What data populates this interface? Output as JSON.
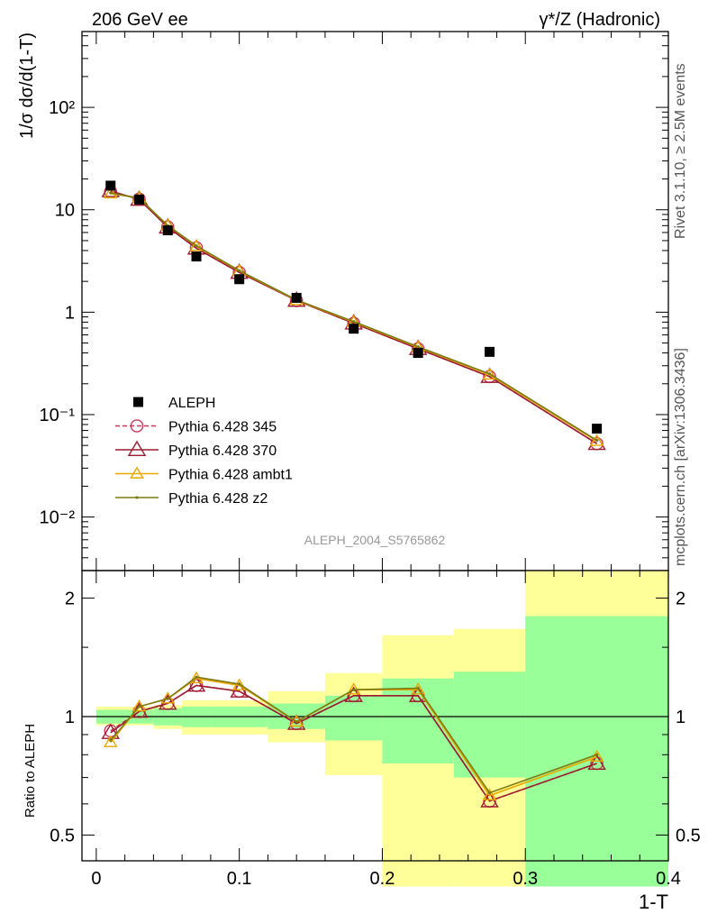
{
  "header": {
    "left_label": "206 GeV ee",
    "right_label": "γ*/Z (Hadronic)"
  },
  "side_labels": {
    "top": "Rivet 3.1.10, ≥ 2.5M events",
    "bottom": "mcplots.cern.ch [arXiv:1306.3436]"
  },
  "watermark": "ALEPH_2004_S5765862",
  "colors": {
    "data": "#000000",
    "p345": "#c83c5a",
    "p370": "#9b1b30",
    "ambt1": "#e8a800",
    "z2": "#7a7a10",
    "band_inner": "#99ff99",
    "band_outer": "#ffff99"
  },
  "legend": [
    {
      "key": "data",
      "label": "ALEPH"
    },
    {
      "key": "p345",
      "label": "Pythia 6.428 345"
    },
    {
      "key": "p370",
      "label": "Pythia 6.428 370"
    },
    {
      "key": "ambt1",
      "label": "Pythia 6.428 ambt1"
    },
    {
      "key": "z2",
      "label": "Pythia 6.428 z2"
    }
  ],
  "chart_data": [
    {
      "type": "scatter",
      "panel": "main",
      "ylabel": "1/σ  dσ/d(1-T)",
      "yscale": "log",
      "ylim": [
        0.003,
        550
      ],
      "xlim": [
        -0.01,
        0.4
      ],
      "ytick_labels": [
        "10⁻²",
        "10⁻¹",
        "1",
        "10",
        "10²"
      ],
      "x": [
        0.01,
        0.03,
        0.05,
        0.07,
        0.1,
        0.14,
        0.18,
        0.225,
        0.275,
        0.35
      ],
      "data": [
        17.2,
        12.6,
        6.3,
        3.5,
        2.1,
        1.38,
        0.69,
        0.4,
        0.41,
        0.073
      ],
      "series": [
        {
          "key": "p345",
          "name": "Pythia 6.428 345",
          "values": [
            15.0,
            12.7,
            6.8,
            4.25,
            2.45,
            1.3,
            0.78,
            0.44,
            0.235,
            0.052
          ]
        },
        {
          "key": "p370",
          "name": "Pythia 6.428 370",
          "values": [
            15.3,
            12.6,
            6.75,
            4.2,
            2.44,
            1.3,
            0.78,
            0.44,
            0.235,
            0.052
          ]
        },
        {
          "key": "ambt1",
          "name": "Pythia 6.428 ambt1",
          "values": [
            14.4,
            13.0,
            7.0,
            4.4,
            2.52,
            1.31,
            0.8,
            0.455,
            0.245,
            0.055
          ]
        },
        {
          "key": "z2",
          "name": "Pythia 6.428 z2",
          "values": [
            14.6,
            13.0,
            7.0,
            4.45,
            2.55,
            1.32,
            0.81,
            0.46,
            0.25,
            0.056
          ]
        }
      ]
    },
    {
      "type": "line",
      "panel": "ratio",
      "ylabel": "Ratio to ALEPH",
      "xlabel": "1-T",
      "yscale": "log",
      "ylim": [
        0.43,
        2.35
      ],
      "xlim": [
        -0.01,
        0.4
      ],
      "ytick_labels": [
        "0.5",
        "1",
        "2"
      ],
      "xtick_labels": [
        "0",
        "0.1",
        "0.2",
        "0.3",
        "0.4"
      ],
      "bins": [
        {
          "lo": 0.0,
          "hi": 0.02,
          "inner": [
            0.96,
            1.04
          ],
          "outer": [
            0.95,
            1.06
          ]
        },
        {
          "lo": 0.02,
          "hi": 0.04,
          "inner": [
            0.96,
            1.04
          ],
          "outer": [
            0.95,
            1.06
          ]
        },
        {
          "lo": 0.04,
          "hi": 0.06,
          "inner": [
            0.95,
            1.05
          ],
          "outer": [
            0.93,
            1.07
          ]
        },
        {
          "lo": 0.06,
          "hi": 0.08,
          "inner": [
            0.94,
            1.06
          ],
          "outer": [
            0.9,
            1.1
          ]
        },
        {
          "lo": 0.08,
          "hi": 0.12,
          "inner": [
            0.94,
            1.06
          ],
          "outer": [
            0.9,
            1.1
          ]
        },
        {
          "lo": 0.12,
          "hi": 0.16,
          "inner": [
            0.93,
            1.08
          ],
          "outer": [
            0.86,
            1.16
          ]
        },
        {
          "lo": 0.16,
          "hi": 0.2,
          "inner": [
            0.87,
            1.13
          ],
          "outer": [
            0.71,
            1.29
          ]
        },
        {
          "lo": 0.2,
          "hi": 0.25,
          "inner": [
            0.76,
            1.25
          ],
          "outer": [
            0.37,
            1.61
          ]
        },
        {
          "lo": 0.25,
          "hi": 0.3,
          "inner": [
            0.7,
            1.3
          ],
          "outer": [
            0.37,
            1.67
          ]
        },
        {
          "lo": 0.3,
          "hi": 0.4,
          "inner": [
            0.37,
            1.8
          ],
          "outer": [
            0.37,
            2.35
          ]
        }
      ],
      "x": [
        0.01,
        0.03,
        0.05,
        0.07,
        0.1,
        0.14,
        0.18,
        0.225,
        0.275,
        0.35
      ],
      "series": [
        {
          "key": "p345",
          "name": "Pythia 6.428 345",
          "values": [
            0.92,
            1.03,
            1.08,
            1.2,
            1.16,
            0.96,
            1.13,
            1.13,
            0.61,
            0.76
          ]
        },
        {
          "key": "p370",
          "name": "Pythia 6.428 370",
          "values": [
            0.91,
            1.03,
            1.08,
            1.2,
            1.16,
            0.96,
            1.13,
            1.13,
            0.61,
            0.76
          ]
        },
        {
          "key": "ambt1",
          "name": "Pythia 6.428 ambt1",
          "values": [
            0.86,
            1.06,
            1.11,
            1.25,
            1.2,
            0.97,
            1.17,
            1.17,
            0.63,
            0.79
          ]
        },
        {
          "key": "z2",
          "name": "Pythia 6.428 z2",
          "values": [
            0.87,
            1.06,
            1.11,
            1.26,
            1.21,
            0.97,
            1.17,
            1.18,
            0.64,
            0.8
          ]
        }
      ]
    }
  ]
}
